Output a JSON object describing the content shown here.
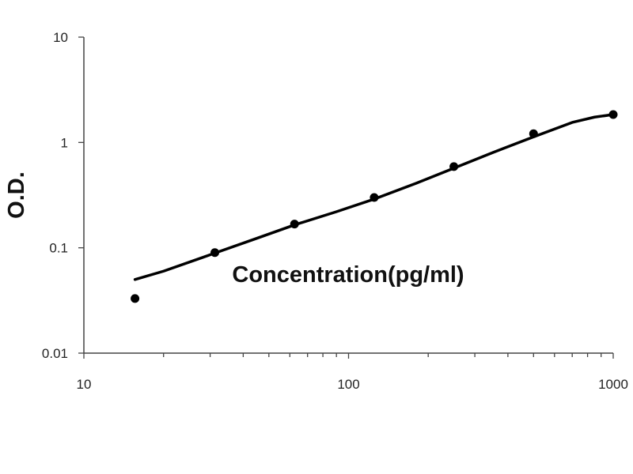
{
  "chart_data": {
    "type": "scatter",
    "title": "",
    "xlabel": "Concentration(pg/ml)",
    "ylabel": "O.D.",
    "x_scale": "log",
    "y_scale": "log",
    "xlim": [
      10,
      1000
    ],
    "ylim": [
      0.01,
      10
    ],
    "x_tick_labels": [
      "10",
      "100",
      "1000"
    ],
    "y_tick_labels": [
      "0.01",
      "0.1",
      "1",
      "10"
    ],
    "grid": false,
    "legend": "none",
    "series": [
      {
        "type": "scatter",
        "color": "#000000",
        "x": [
          15.6,
          31.25,
          62.5,
          125,
          250,
          500,
          1000
        ],
        "y": [
          0.033,
          0.09,
          0.168,
          0.3,
          0.59,
          1.21,
          1.84
        ]
      },
      {
        "type": "line",
        "color": "#000000",
        "x": [
          15.6,
          20,
          31.25,
          45,
          62.5,
          90,
          125,
          180,
          250,
          350,
          500,
          700,
          850,
          1000
        ],
        "y": [
          0.05,
          0.06,
          0.089,
          0.123,
          0.165,
          0.22,
          0.29,
          0.41,
          0.57,
          0.8,
          1.13,
          1.55,
          1.74,
          1.84
        ]
      }
    ]
  }
}
